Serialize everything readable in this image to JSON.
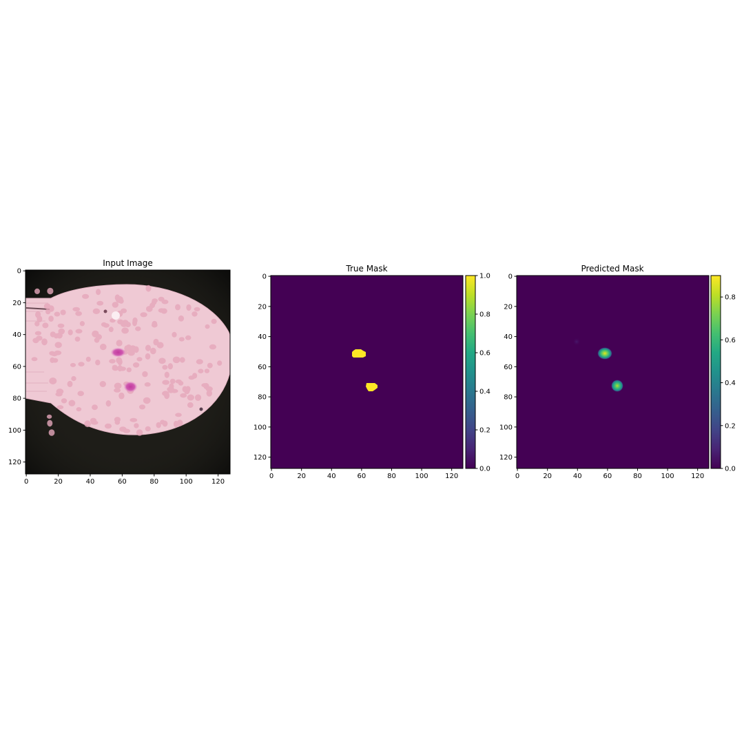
{
  "chart_data": [
    {
      "type": "heatmap",
      "title": "Input Image",
      "xlabel": "",
      "ylabel": "",
      "xlim": [
        0,
        128
      ],
      "ylim": [
        128,
        0
      ],
      "xticks": [
        "0",
        "20",
        "40",
        "60",
        "80",
        "100",
        "120"
      ],
      "yticks": [
        "0",
        "20",
        "40",
        "60",
        "80",
        "100",
        "120"
      ],
      "content": "RGB microscopy image",
      "features": [
        {
          "kind": "pink-cell",
          "x": 58,
          "y": 51
        },
        {
          "kind": "pink-cell",
          "x": 66,
          "y": 73
        }
      ],
      "grid": false,
      "colorbar": null
    },
    {
      "type": "heatmap",
      "title": "True Mask",
      "xlabel": "",
      "ylabel": "",
      "xlim": [
        0,
        128
      ],
      "ylim": [
        128,
        0
      ],
      "xticks": [
        "0",
        "20",
        "40",
        "60",
        "80",
        "100",
        "120"
      ],
      "yticks": [
        "0",
        "20",
        "40",
        "60",
        "80",
        "100",
        "120"
      ],
      "background_value": 0.0,
      "blobs": [
        {
          "x": 58,
          "y": 52,
          "value": 1.0
        },
        {
          "x": 66,
          "y": 73,
          "value": 1.0
        }
      ],
      "colormap": "viridis",
      "grid": false,
      "colorbar": {
        "min": 0.0,
        "max": 1.0,
        "ticks": [
          "0.0",
          "0.2",
          "0.4",
          "0.6",
          "0.8",
          "1.0"
        ]
      }
    },
    {
      "type": "heatmap",
      "title": "Predicted Mask",
      "xlabel": "",
      "ylabel": "",
      "xlim": [
        0,
        128
      ],
      "ylim": [
        128,
        0
      ],
      "xticks": [
        "0",
        "20",
        "40",
        "60",
        "80",
        "100",
        "120"
      ],
      "yticks": [
        "0",
        "20",
        "40",
        "60",
        "80",
        "100",
        "120"
      ],
      "background_value": 0.0,
      "blobs": [
        {
          "x": 58,
          "y": 52,
          "value": 0.9
        },
        {
          "x": 67,
          "y": 73,
          "value": 0.8
        },
        {
          "x": 40,
          "y": 43,
          "value": 0.05
        }
      ],
      "colormap": "viridis",
      "grid": false,
      "colorbar": {
        "min": 0.0,
        "max": 0.9,
        "ticks": [
          "0.0",
          "0.2",
          "0.4",
          "0.6",
          "0.8"
        ]
      }
    }
  ]
}
